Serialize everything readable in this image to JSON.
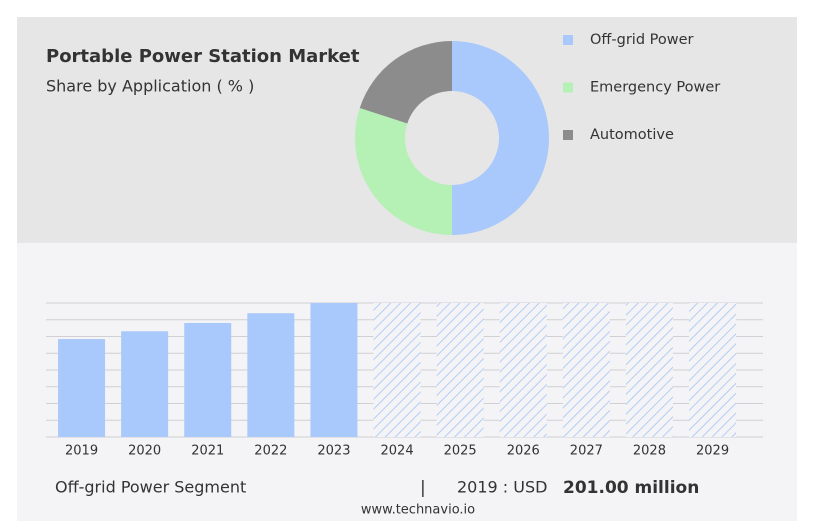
{
  "chart_data": [
    {
      "type": "pie",
      "title": "Portable Power Station Market",
      "subtitle": "Share by Application ( % )",
      "categories": [
        "Off-grid Power",
        "Emergency Power",
        "Automotive"
      ],
      "values": [
        50,
        30,
        20
      ],
      "colors": [
        "#a9c8fb",
        "#b5f0b5",
        "#8c8c8c"
      ],
      "donut": true
    },
    {
      "type": "bar",
      "categories": [
        "2019",
        "2020",
        "2021",
        "2022",
        "2023",
        "2024",
        "2025",
        "2026",
        "2027",
        "2028",
        "2029"
      ],
      "values": [
        201,
        217,
        234,
        254,
        275,
        null,
        null,
        null,
        null,
        null,
        null
      ],
      "color": "#a9c8fb",
      "ylim": [
        0,
        275
      ],
      "grid": true
    }
  ],
  "footer": {
    "segment": "Off-grid Power Segment",
    "separator": "|",
    "year_unit": "2019 : USD",
    "amount": "201.00 million",
    "source": "www.technavio.io"
  }
}
